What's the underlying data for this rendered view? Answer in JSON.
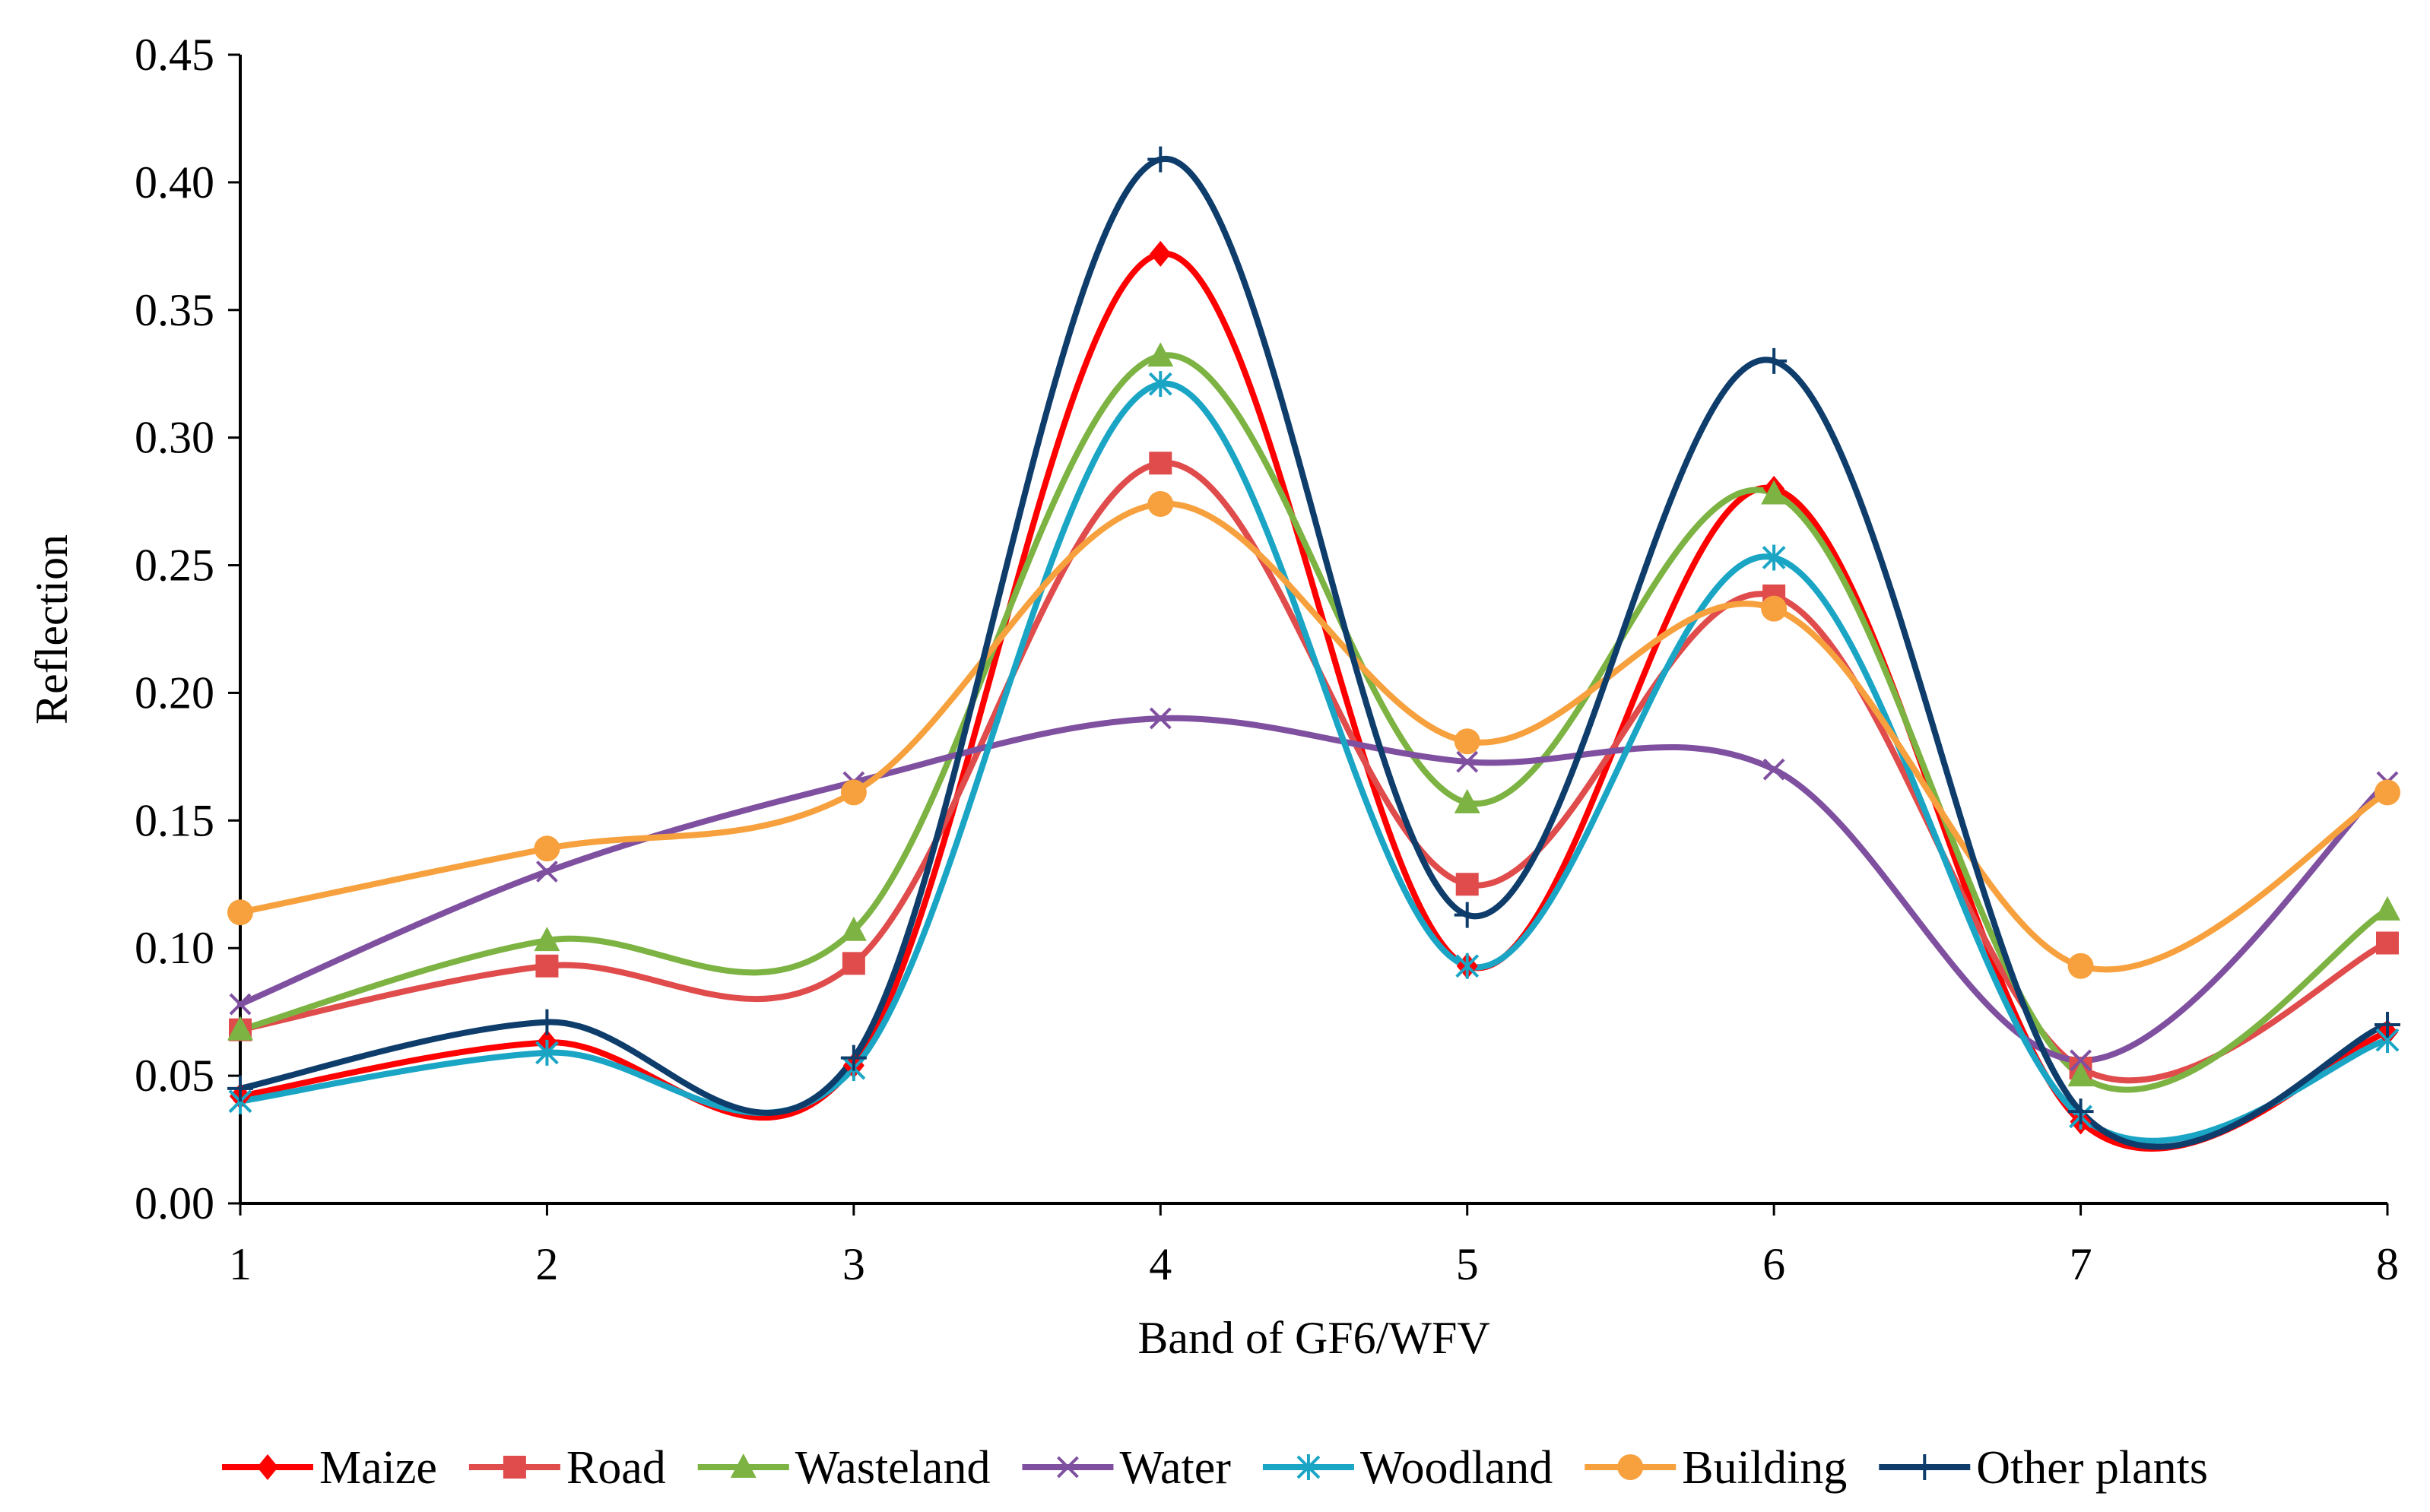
{
  "chart_data": {
    "type": "line",
    "title": "",
    "xlabel": "Band of GF6/WFV",
    "ylabel": "Reflection",
    "x": [
      1,
      2,
      3,
      4,
      5,
      6,
      7,
      8
    ],
    "ylim": [
      0,
      0.45
    ],
    "yticks": [
      "0.00",
      "0.05",
      "0.10",
      "0.15",
      "0.20",
      "0.25",
      "0.30",
      "0.35",
      "0.40",
      "0.45"
    ],
    "grid": false,
    "smooth": true,
    "legend_position": "bottom",
    "series": [
      {
        "name": "Maize",
        "color": "#ff0000",
        "marker": "diamond",
        "values": [
          0.042,
          0.063,
          0.054,
          0.372,
          0.093,
          0.28,
          0.032,
          0.067
        ]
      },
      {
        "name": "Road",
        "color": "#e04b4b",
        "marker": "square",
        "values": [
          0.068,
          0.093,
          0.094,
          0.29,
          0.125,
          0.238,
          0.053,
          0.102
        ]
      },
      {
        "name": "Wasteland",
        "color": "#7cb342",
        "marker": "triangle",
        "values": [
          0.068,
          0.103,
          0.107,
          0.332,
          0.157,
          0.278,
          0.05,
          0.115
        ]
      },
      {
        "name": "Water",
        "color": "#8050a0",
        "marker": "x",
        "values": [
          0.078,
          0.13,
          0.165,
          0.19,
          0.173,
          0.17,
          0.056,
          0.165
        ]
      },
      {
        "name": "Woodland",
        "color": "#1aa5c5",
        "marker": "asterisk",
        "values": [
          0.04,
          0.059,
          0.053,
          0.321,
          0.093,
          0.253,
          0.034,
          0.064
        ]
      },
      {
        "name": "Building",
        "color": "#f7a13e",
        "marker": "circle",
        "values": [
          0.114,
          0.139,
          0.161,
          0.274,
          0.181,
          0.233,
          0.093,
          0.161
        ]
      },
      {
        "name": "Other plants",
        "color": "#0e3d6b",
        "marker": "plus",
        "values": [
          0.045,
          0.071,
          0.057,
          0.409,
          0.113,
          0.33,
          0.036,
          0.07
        ]
      }
    ]
  }
}
